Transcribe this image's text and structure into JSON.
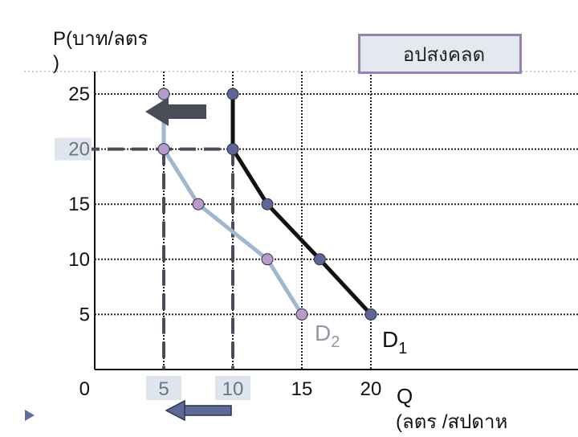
{
  "slide": {
    "title_box": "อปสงคลด",
    "y_axis_label": "P(บาท/ลตร\n)",
    "x_axis_label": "Q",
    "x_axis_unit": "(ลตร  /สปดาห",
    "colors": {
      "background": "#ffffff",
      "d1": "#111111",
      "d2": "#9fb7cf",
      "d1_points": "#5a6797",
      "d2_points": "#b79bcf",
      "dashed": "#4a4d57",
      "arrow": "#4a4d57",
      "arrow_down": "#5b6a9a",
      "box_fill": "#e4e8ef",
      "box_border": "#9a80b2"
    }
  },
  "chart_data": {
    "type": "line",
    "y_ticks": [
      "25",
      "20",
      "15",
      "10",
      "5",
      "0"
    ],
    "y_tick_values": [
      25,
      20,
      15,
      10,
      5,
      0
    ],
    "x_ticks": [
      "5",
      "10",
      "15",
      "20"
    ],
    "x_tick_values": [
      5,
      10,
      15,
      20
    ],
    "highlighted_y_tick": "20",
    "highlighted_x_ticks": [
      "5",
      "10"
    ],
    "grid": true,
    "series": [
      {
        "name": "D1",
        "label": "D",
        "subscript": "1",
        "points": [
          [
            10,
            25
          ],
          [
            10,
            20
          ],
          [
            12.5,
            15
          ],
          [
            16.3,
            10
          ],
          [
            20,
            5
          ]
        ]
      },
      {
        "name": "D2",
        "label": "D",
        "subscript": "2",
        "points": [
          [
            5,
            25
          ],
          [
            5,
            20
          ],
          [
            7.5,
            15
          ],
          [
            12.5,
            10
          ],
          [
            15,
            5
          ]
        ]
      }
    ],
    "reference_lines": [
      {
        "from": [
          0,
          20
        ],
        "to": [
          10,
          20
        ]
      },
      {
        "from": [
          5,
          20
        ],
        "to": [
          5,
          0
        ]
      },
      {
        "from": [
          10,
          20
        ],
        "to": [
          10,
          0
        ]
      }
    ],
    "arrows": [
      {
        "direction": "left",
        "meaning": "shift of demand curve"
      },
      {
        "direction": "left",
        "meaning": "decrease in quantity"
      }
    ]
  }
}
